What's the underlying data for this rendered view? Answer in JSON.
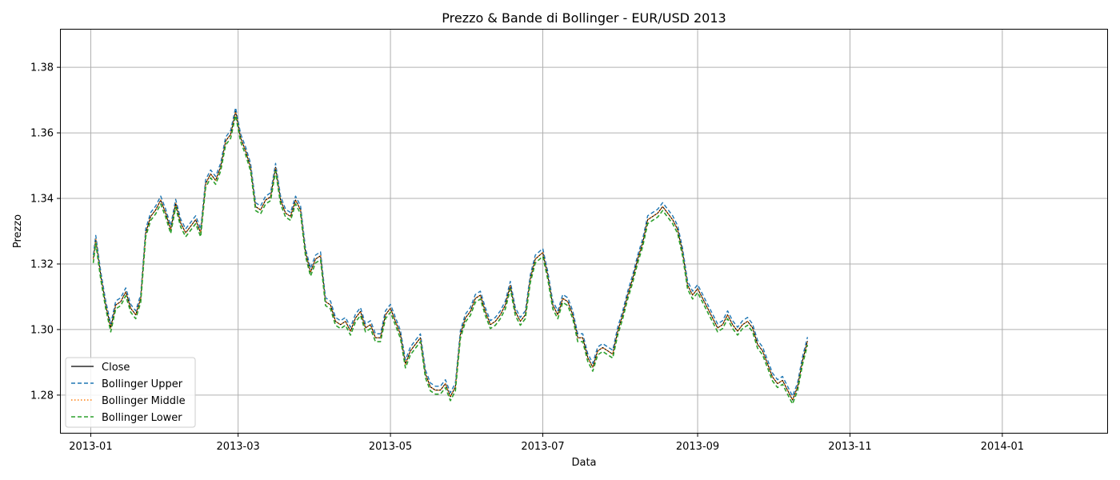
{
  "chart_data": {
    "type": "line",
    "title": "Prezzo & Bande di Bollinger - EUR/USD 2013",
    "xlabel": "Data",
    "ylabel": "Prezzo",
    "x_tick_labels": [
      "2013-01",
      "2013-03",
      "2013-05",
      "2013-07",
      "2013-09",
      "2013-11",
      "2014-01"
    ],
    "y_tick_labels": [
      "1.28",
      "1.30",
      "1.32",
      "1.34",
      "1.36",
      "1.38"
    ],
    "xlim": [
      "2012-12-20",
      "2014-02-12"
    ],
    "ylim": [
      1.2685,
      1.3915
    ],
    "grid": true,
    "legend_position": "lower-left",
    "series": [
      {
        "name": "Close",
        "color": "#000000",
        "style": "solid"
      },
      {
        "name": "Bollinger Upper",
        "color": "#1f77b4",
        "style": "dashed"
      },
      {
        "name": "Bollinger Middle",
        "color": "#ff7f0e",
        "style": "dotted"
      },
      {
        "name": "Bollinger Lower",
        "color": "#2ca02c",
        "style": "dashed"
      }
    ],
    "close_points": [
      [
        "2013-01-02",
        1.3215
      ],
      [
        "2013-01-03",
        1.3275
      ],
      [
        "2013-01-05",
        1.3165
      ],
      [
        "2013-01-07",
        1.3075
      ],
      [
        "2013-01-09",
        1.3005
      ],
      [
        "2013-01-11",
        1.3075
      ],
      [
        "2013-01-13",
        1.3085
      ],
      [
        "2013-01-15",
        1.3115
      ],
      [
        "2013-01-17",
        1.3065
      ],
      [
        "2013-01-19",
        1.3045
      ],
      [
        "2013-01-21",
        1.3095
      ],
      [
        "2013-01-23",
        1.3295
      ],
      [
        "2013-01-25",
        1.3345
      ],
      [
        "2013-01-27",
        1.3365
      ],
      [
        "2013-01-29",
        1.3395
      ],
      [
        "2013-01-31",
        1.3355
      ],
      [
        "2013-02-02",
        1.3305
      ],
      [
        "2013-02-04",
        1.3385
      ],
      [
        "2013-02-06",
        1.3325
      ],
      [
        "2013-02-08",
        1.3295
      ],
      [
        "2013-02-10",
        1.3315
      ],
      [
        "2013-02-12",
        1.3335
      ],
      [
        "2013-02-14",
        1.3295
      ],
      [
        "2013-02-16",
        1.3445
      ],
      [
        "2013-02-18",
        1.3475
      ],
      [
        "2013-02-20",
        1.3455
      ],
      [
        "2013-02-22",
        1.3495
      ],
      [
        "2013-02-24",
        1.3575
      ],
      [
        "2013-02-26",
        1.3595
      ],
      [
        "2013-02-28",
        1.3665
      ],
      [
        "2013-03-02",
        1.3585
      ],
      [
        "2013-03-04",
        1.3545
      ],
      [
        "2013-03-06",
        1.3495
      ],
      [
        "2013-03-08",
        1.3375
      ],
      [
        "2013-03-10",
        1.3365
      ],
      [
        "2013-03-12",
        1.3395
      ],
      [
        "2013-03-14",
        1.3405
      ],
      [
        "2013-03-16",
        1.3495
      ],
      [
        "2013-03-18",
        1.3395
      ],
      [
        "2013-03-20",
        1.3355
      ],
      [
        "2013-03-22",
        1.3345
      ],
      [
        "2013-03-24",
        1.3395
      ],
      [
        "2013-03-26",
        1.3365
      ],
      [
        "2013-03-28",
        1.3235
      ],
      [
        "2013-03-30",
        1.3175
      ],
      [
        "2013-04-01",
        1.3215
      ],
      [
        "2013-04-03",
        1.3225
      ],
      [
        "2013-04-05",
        1.3085
      ],
      [
        "2013-04-07",
        1.3075
      ],
      [
        "2013-04-09",
        1.3025
      ],
      [
        "2013-04-11",
        1.3015
      ],
      [
        "2013-04-13",
        1.3025
      ],
      [
        "2013-04-15",
        1.2995
      ],
      [
        "2013-04-17",
        1.3035
      ],
      [
        "2013-04-19",
        1.3055
      ],
      [
        "2013-04-21",
        1.3005
      ],
      [
        "2013-04-23",
        1.3015
      ],
      [
        "2013-04-25",
        1.2975
      ],
      [
        "2013-04-27",
        1.2975
      ],
      [
        "2013-04-29",
        1.3045
      ],
      [
        "2013-05-01",
        1.3065
      ],
      [
        "2013-05-03",
        1.3025
      ],
      [
        "2013-05-05",
        1.2985
      ],
      [
        "2013-05-07",
        1.2895
      ],
      [
        "2013-05-09",
        1.2935
      ],
      [
        "2013-05-11",
        1.2955
      ],
      [
        "2013-05-13",
        1.2975
      ],
      [
        "2013-05-15",
        1.2865
      ],
      [
        "2013-05-17",
        1.2825
      ],
      [
        "2013-05-19",
        1.2815
      ],
      [
        "2013-05-21",
        1.2815
      ],
      [
        "2013-05-23",
        1.2835
      ],
      [
        "2013-05-25",
        1.2795
      ],
      [
        "2013-05-27",
        1.2825
      ],
      [
        "2013-05-29",
        1.2985
      ],
      [
        "2013-05-31",
        1.3035
      ],
      [
        "2013-06-02",
        1.3055
      ],
      [
        "2013-06-04",
        1.3095
      ],
      [
        "2013-06-06",
        1.3105
      ],
      [
        "2013-06-08",
        1.3055
      ],
      [
        "2013-06-10",
        1.3015
      ],
      [
        "2013-06-12",
        1.3025
      ],
      [
        "2013-06-14",
        1.3045
      ],
      [
        "2013-06-16",
        1.3075
      ],
      [
        "2013-06-18",
        1.3135
      ],
      [
        "2013-06-20",
        1.3055
      ],
      [
        "2013-06-22",
        1.3025
      ],
      [
        "2013-06-24",
        1.3045
      ],
      [
        "2013-06-26",
        1.3155
      ],
      [
        "2013-06-28",
        1.3215
      ],
      [
        "2013-07-01",
        1.3235
      ],
      [
        "2013-07-03",
        1.3165
      ],
      [
        "2013-07-05",
        1.3075
      ],
      [
        "2013-07-07",
        1.3045
      ],
      [
        "2013-07-09",
        1.3095
      ],
      [
        "2013-07-11",
        1.3085
      ],
      [
        "2013-07-13",
        1.3045
      ],
      [
        "2013-07-15",
        1.2975
      ],
      [
        "2013-07-17",
        1.2975
      ],
      [
        "2013-07-19",
        1.2915
      ],
      [
        "2013-07-21",
        1.2885
      ],
      [
        "2013-07-23",
        1.2935
      ],
      [
        "2013-07-25",
        1.2945
      ],
      [
        "2013-07-27",
        1.2935
      ],
      [
        "2013-07-29",
        1.2925
      ],
      [
        "2013-07-31",
        1.2995
      ],
      [
        "2013-08-02",
        1.3045
      ],
      [
        "2013-08-04",
        1.3105
      ],
      [
        "2013-08-06",
        1.3155
      ],
      [
        "2013-08-08",
        1.3215
      ],
      [
        "2013-08-10",
        1.3265
      ],
      [
        "2013-08-12",
        1.3335
      ],
      [
        "2013-08-14",
        1.3345
      ],
      [
        "2013-08-16",
        1.3355
      ],
      [
        "2013-08-18",
        1.3375
      ],
      [
        "2013-08-20",
        1.3355
      ],
      [
        "2013-08-22",
        1.3335
      ],
      [
        "2013-08-24",
        1.3305
      ],
      [
        "2013-08-26",
        1.3235
      ],
      [
        "2013-08-28",
        1.3135
      ],
      [
        "2013-08-30",
        1.3105
      ],
      [
        "2013-09-01",
        1.3125
      ],
      [
        "2013-09-03",
        1.3095
      ],
      [
        "2013-09-05",
        1.3065
      ],
      [
        "2013-09-07",
        1.3035
      ],
      [
        "2013-09-09",
        1.3005
      ],
      [
        "2013-09-11",
        1.3015
      ],
      [
        "2013-09-13",
        1.3045
      ],
      [
        "2013-09-15",
        1.3015
      ],
      [
        "2013-09-17",
        1.2995
      ],
      [
        "2013-09-19",
        1.3015
      ],
      [
        "2013-09-21",
        1.3025
      ],
      [
        "2013-09-23",
        1.3005
      ],
      [
        "2013-09-25",
        1.2955
      ],
      [
        "2013-09-27",
        1.2935
      ],
      [
        "2013-09-29",
        1.2895
      ],
      [
        "2013-10-01",
        1.2855
      ],
      [
        "2013-10-03",
        1.2835
      ],
      [
        "2013-10-05",
        1.2845
      ],
      [
        "2013-10-07",
        1.2815
      ],
      [
        "2013-10-09",
        1.2785
      ],
      [
        "2013-10-11",
        1.2825
      ],
      [
        "2013-10-13",
        1.2905
      ],
      [
        "2013-10-15",
        1.2965
      ]
    ]
  }
}
